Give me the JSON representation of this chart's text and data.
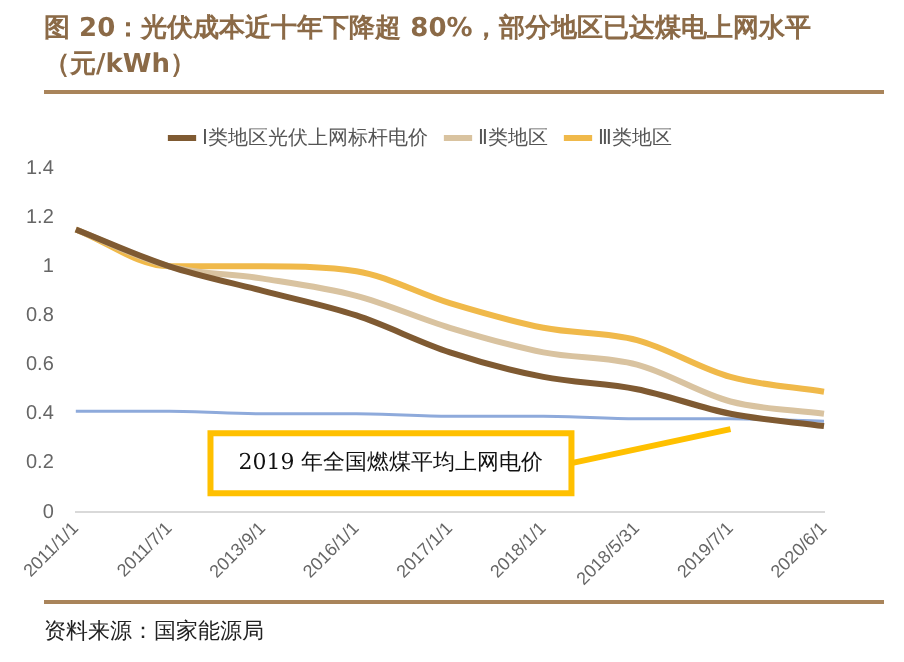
{
  "chart_data": {
    "type": "line",
    "title": "图 20：光伏成本近十年下降超 80%，部分地区已达煤电上网水平（元/kWh）",
    "categories": [
      "2011/1/1",
      "2011/7/1",
      "2013/9/1",
      "2016/1/1",
      "2017/1/1",
      "2018/1/1",
      "2018/5/31",
      "2019/7/1",
      "2020/6/1"
    ],
    "series": [
      {
        "name": "Ⅰ类地区光伏上网标杆电价",
        "color": "#7f5a32",
        "values": [
          1.15,
          1.0,
          0.9,
          0.8,
          0.65,
          0.55,
          0.5,
          0.4,
          0.35
        ]
      },
      {
        "name": "Ⅱ类地区",
        "color": "#d9c3a0",
        "values": [
          1.15,
          1.0,
          0.95,
          0.88,
          0.75,
          0.65,
          0.6,
          0.45,
          0.4
        ]
      },
      {
        "name": "Ⅲ类地区",
        "color": "#f0b94a",
        "values": [
          1.15,
          1.0,
          1.0,
          0.98,
          0.85,
          0.75,
          0.7,
          0.55,
          0.49
        ]
      },
      {
        "color": "#8eaadb",
        "values": [
          0.41,
          0.41,
          0.4,
          0.4,
          0.39,
          0.39,
          0.38,
          0.38,
          0.37
        ]
      }
    ],
    "ylim": [
      0,
      1.4
    ],
    "yticks": [
      0,
      0.2,
      0.4,
      0.6,
      0.8,
      1,
      1.2,
      1.4
    ],
    "grid": false,
    "legend": "top",
    "marker": "none",
    "line_style": "solid",
    "annotations": [
      "资料来源：国家能源局",
      {
        "text": "2019 年全国燃煤平均上网电价",
        "x": "2019/7/1",
        "y": 0.37
      }
    ]
  }
}
